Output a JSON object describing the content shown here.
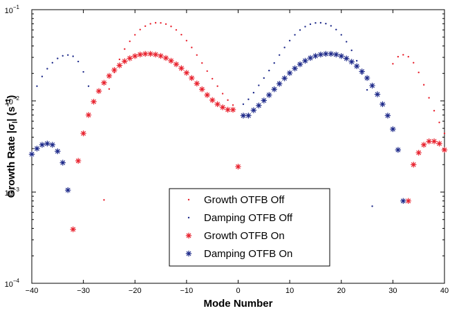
{
  "chart_data": {
    "type": "scatter",
    "title": "",
    "xlabel": "Mode Number",
    "ylabel": "Growth Rate |σ_l| (s⁻¹)",
    "ylabel_parts": {
      "main": "Growth Rate |σ",
      "sub": "l",
      "tail": "| (s",
      "sup": "−1",
      "end": ")"
    },
    "xlim": [
      -40,
      40
    ],
    "ylim": [
      0.0001,
      0.1
    ],
    "yscale": "log",
    "grid": false,
    "legend_position": "bottom-center",
    "x_ticks": [
      -40,
      -30,
      -20,
      -10,
      0,
      10,
      20,
      30,
      40
    ],
    "x_tick_labels": [
      "−40",
      "−30",
      "−20",
      "−10",
      "0",
      "10",
      "20",
      "30",
      "40"
    ],
    "y_ticks": [
      {
        "value": 0.0001,
        "base": "10",
        "exp": "−4"
      },
      {
        "value": 0.001,
        "base": "10",
        "exp": "−3"
      },
      {
        "value": 0.01,
        "base": "10",
        "exp": "−2"
      },
      {
        "value": 0.1,
        "base": "10",
        "exp": "−1"
      }
    ],
    "series": [
      {
        "name": "Growth OTFB Off",
        "color": "#e8222e",
        "marker": "dot",
        "points": [
          [
            -26,
            0.00082
          ],
          [
            -25,
            0.0135
          ],
          [
            -24,
            0.0205
          ],
          [
            -23,
            0.0285
          ],
          [
            -22,
            0.037
          ],
          [
            -21,
            0.045
          ],
          [
            -20,
            0.053
          ],
          [
            -19,
            0.0605
          ],
          [
            -18,
            0.066
          ],
          [
            -17,
            0.07
          ],
          [
            -16,
            0.0718
          ],
          [
            -15,
            0.0716
          ],
          [
            -14,
            0.0695
          ],
          [
            -13,
            0.0655
          ],
          [
            -12,
            0.06
          ],
          [
            -11,
            0.0532
          ],
          [
            -10,
            0.0458
          ],
          [
            -9,
            0.0385
          ],
          [
            -8,
            0.0318
          ],
          [
            -7,
            0.026
          ],
          [
            -6,
            0.0212
          ],
          [
            -5,
            0.0175
          ],
          [
            -4,
            0.0145
          ],
          [
            -3,
            0.012
          ],
          [
            -2,
            0.0102
          ],
          [
            -1,
            0.009
          ],
          [
            30,
            0.0255
          ],
          [
            31,
            0.0305
          ],
          [
            32,
            0.032
          ],
          [
            33,
            0.0305
          ],
          [
            34,
            0.0262
          ],
          [
            35,
            0.0205
          ],
          [
            36,
            0.015
          ],
          [
            37,
            0.0108
          ],
          [
            38,
            0.0078
          ],
          [
            39,
            0.0058
          ],
          [
            40,
            0.0044
          ]
        ]
      },
      {
        "name": "Damping OTFB Off",
        "color": "#1e2a8a",
        "marker": "dot",
        "points": [
          [
            -39,
            0.0145
          ],
          [
            -38,
            0.0185
          ],
          [
            -37,
            0.0225
          ],
          [
            -36,
            0.0262
          ],
          [
            -35,
            0.0292
          ],
          [
            -34,
            0.0312
          ],
          [
            -33,
            0.0318
          ],
          [
            -32,
            0.0308
          ],
          [
            -31,
            0.027
          ],
          [
            -30,
            0.0208
          ],
          [
            -29,
            0.0145
          ],
          [
            1,
            0.0092
          ],
          [
            2,
            0.0104
          ],
          [
            3,
            0.0123
          ],
          [
            4,
            0.0148
          ],
          [
            5,
            0.0178
          ],
          [
            6,
            0.0215
          ],
          [
            7,
            0.026
          ],
          [
            8,
            0.0318
          ],
          [
            9,
            0.0385
          ],
          [
            10,
            0.0458
          ],
          [
            11,
            0.053
          ],
          [
            12,
            0.0598
          ],
          [
            13,
            0.0652
          ],
          [
            14,
            0.0693
          ],
          [
            15,
            0.0715
          ],
          [
            16,
            0.0718
          ],
          [
            17,
            0.0703
          ],
          [
            18,
            0.0665
          ],
          [
            19,
            0.0605
          ],
          [
            20,
            0.053
          ],
          [
            21,
            0.0445
          ],
          [
            22,
            0.0358
          ],
          [
            23,
            0.0275
          ],
          [
            24,
            0.0198
          ],
          [
            25,
            0.0132
          ],
          [
            26,
            0.0007
          ]
        ]
      },
      {
        "name": "Growth OTFB On",
        "color": "#e8222e",
        "marker": "star",
        "points": [
          [
            -32,
            0.00039
          ],
          [
            -31,
            0.0022
          ],
          [
            -30,
            0.0044
          ],
          [
            -29,
            0.007
          ],
          [
            -28,
            0.0098
          ],
          [
            -27,
            0.0128
          ],
          [
            -26,
            0.0158
          ],
          [
            -25,
            0.0188
          ],
          [
            -24,
            0.0218
          ],
          [
            -23,
            0.0245
          ],
          [
            -22,
            0.0272
          ],
          [
            -21,
            0.0293
          ],
          [
            -20,
            0.031
          ],
          [
            -19,
            0.0322
          ],
          [
            -18,
            0.0328
          ],
          [
            -17,
            0.0328
          ],
          [
            -16,
            0.0322
          ],
          [
            -15,
            0.0311
          ],
          [
            -14,
            0.0295
          ],
          [
            -13,
            0.0275
          ],
          [
            -12,
            0.0252
          ],
          [
            -11,
            0.0228
          ],
          [
            -10,
            0.0203
          ],
          [
            -9,
            0.0178
          ],
          [
            -8,
            0.0155
          ],
          [
            -7,
            0.0134
          ],
          [
            -6,
            0.0116
          ],
          [
            -5,
            0.0102
          ],
          [
            -4,
            0.0092
          ],
          [
            -3,
            0.0085
          ],
          [
            -2,
            0.008
          ],
          [
            -1,
            0.008
          ],
          [
            0,
            0.0019
          ],
          [
            33,
            0.0008
          ],
          [
            34,
            0.002
          ],
          [
            35,
            0.0027
          ],
          [
            36,
            0.0033
          ],
          [
            37,
            0.0036
          ],
          [
            38,
            0.0036
          ],
          [
            39,
            0.0034
          ],
          [
            40,
            0.0029
          ]
        ]
      },
      {
        "name": "Damping OTFB On",
        "color": "#1e2a8a",
        "marker": "star",
        "points": [
          [
            -40,
            0.0026
          ],
          [
            -39,
            0.003
          ],
          [
            -38,
            0.0033
          ],
          [
            -37,
            0.0034
          ],
          [
            -36,
            0.0033
          ],
          [
            -35,
            0.0028
          ],
          [
            -34,
            0.0021
          ],
          [
            -33,
            0.00105
          ],
          [
            1,
            0.0069
          ],
          [
            2,
            0.0069
          ],
          [
            3,
            0.0079
          ],
          [
            4,
            0.0089
          ],
          [
            5,
            0.0101
          ],
          [
            6,
            0.0116
          ],
          [
            7,
            0.0134
          ],
          [
            8,
            0.0154
          ],
          [
            9,
            0.0177
          ],
          [
            10,
            0.0202
          ],
          [
            11,
            0.0227
          ],
          [
            12,
            0.0252
          ],
          [
            13,
            0.0275
          ],
          [
            14,
            0.0295
          ],
          [
            15,
            0.0311
          ],
          [
            16,
            0.0322
          ],
          [
            17,
            0.0328
          ],
          [
            18,
            0.0328
          ],
          [
            19,
            0.0322
          ],
          [
            20,
            0.031
          ],
          [
            21,
            0.0292
          ],
          [
            22,
            0.0268
          ],
          [
            23,
            0.024
          ],
          [
            24,
            0.021
          ],
          [
            25,
            0.0178
          ],
          [
            26,
            0.0147
          ],
          [
            27,
            0.0118
          ],
          [
            28,
            0.0092
          ],
          [
            29,
            0.0069
          ],
          [
            30,
            0.0049
          ],
          [
            31,
            0.0029
          ],
          [
            32,
            0.0008
          ]
        ]
      }
    ]
  }
}
